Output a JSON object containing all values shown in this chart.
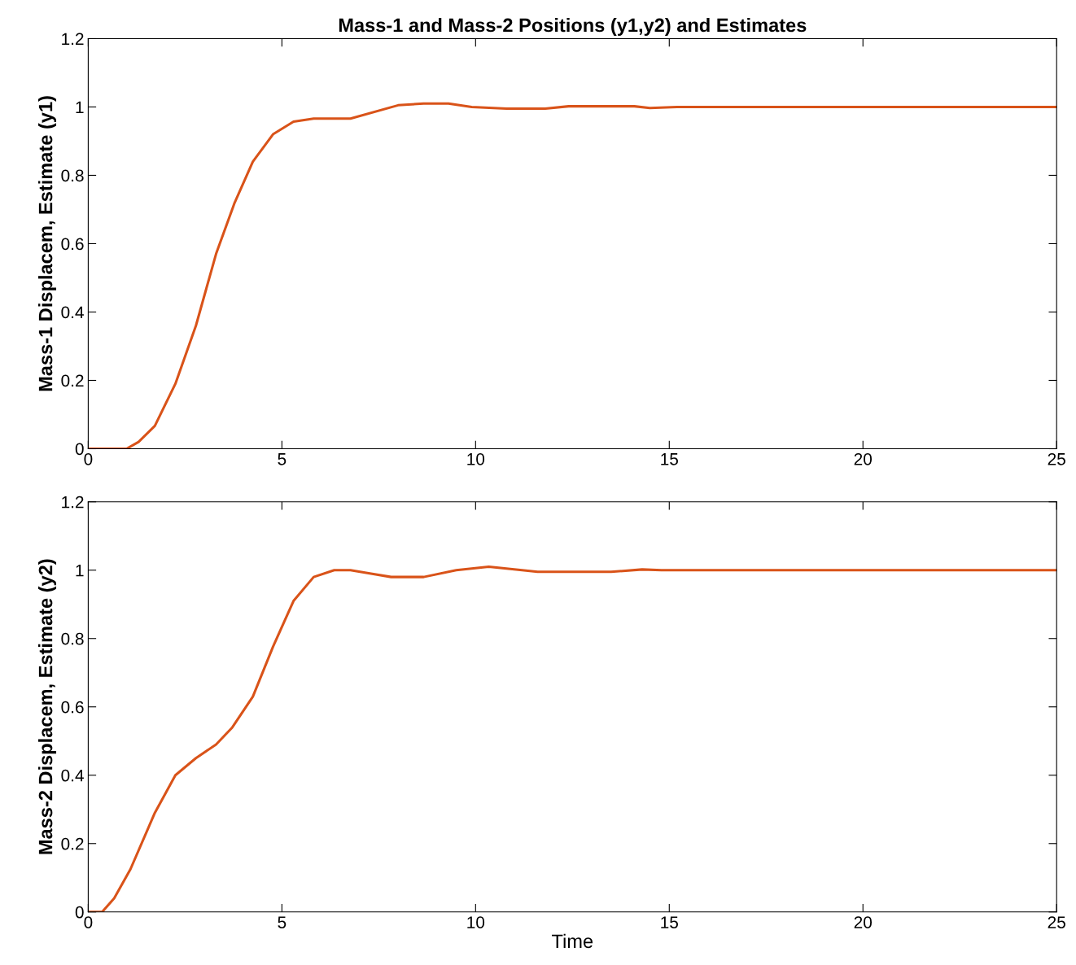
{
  "chart_data": [
    {
      "type": "line",
      "title": "Mass-1 and Mass-2 Positions (y1,y2) and Estimates",
      "ylabel": "Mass-1 Displacem, Estimate (y1)",
      "xlim": [
        0,
        25
      ],
      "ylim": [
        0,
        1.2
      ],
      "xticks": [
        0,
        5,
        10,
        15,
        20,
        25
      ],
      "yticks": [
        0,
        0.2,
        0.4,
        0.6,
        0.8,
        1,
        1.2
      ],
      "grid": false,
      "legend": false,
      "series": [
        {
          "color": "#d95319",
          "x": [
            0,
            0.99,
            1.3,
            1.72,
            2.25,
            2.78,
            3.3,
            3.78,
            4.25,
            4.77,
            5.3,
            5.82,
            6.77,
            8,
            8.66,
            9.3,
            9.9,
            10.8,
            11.8,
            12.4,
            14.1,
            14.5,
            15.2,
            25
          ],
          "values": [
            0,
            0,
            0.02,
            0.067,
            0.19,
            0.36,
            0.57,
            0.72,
            0.84,
            0.92,
            0.957,
            0.966,
            0.966,
            1.005,
            1.01,
            1.01,
            1,
            0.995,
            0.995,
            1.002,
            1.002,
            0.997,
            1,
            1
          ]
        }
      ]
    },
    {
      "type": "line",
      "xlabel": "Time",
      "ylabel": "Mass-2 Displacem, Estimate (y2)",
      "xlim": [
        0,
        25
      ],
      "ylim": [
        0,
        1.2
      ],
      "xticks": [
        0,
        5,
        10,
        15,
        20,
        25
      ],
      "yticks": [
        0,
        0.2,
        0.4,
        0.6,
        0.8,
        1,
        1.2
      ],
      "grid": false,
      "legend": false,
      "series": [
        {
          "color": "#d95319",
          "x": [
            0,
            0.36,
            0.67,
            1.09,
            1.72,
            2.25,
            2.78,
            3.3,
            3.72,
            4.25,
            4.77,
            5.3,
            5.82,
            6.35,
            6.77,
            7.3,
            7.82,
            8.66,
            9.5,
            10.34,
            11.2,
            11.6,
            13.5,
            14.3,
            14.8,
            25
          ],
          "values": [
            0,
            0,
            0.04,
            0.125,
            0.29,
            0.4,
            0.45,
            0.49,
            0.54,
            0.63,
            0.776,
            0.91,
            0.98,
            1,
            1,
            0.99,
            0.98,
            0.98,
            1,
            1.01,
            1,
            0.995,
            0.995,
            1.002,
            1,
            1
          ]
        }
      ]
    }
  ]
}
